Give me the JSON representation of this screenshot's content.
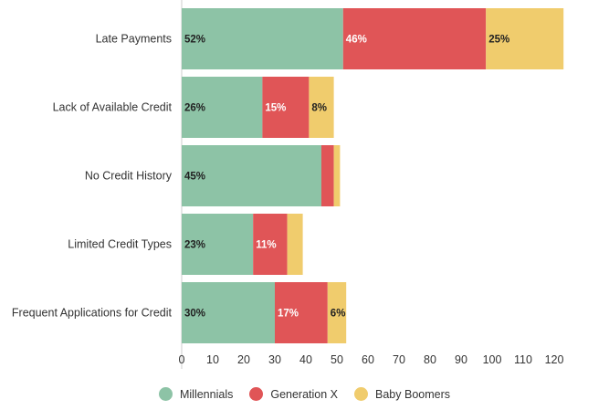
{
  "chart_data": {
    "type": "bar",
    "orientation": "horizontal",
    "stacked": true,
    "categories": [
      "Late Payments",
      "Lack of Available Credit",
      "No Credit History",
      "Limited Credit Types",
      "Frequent Applications for Credit"
    ],
    "series": [
      {
        "name": "Millennials",
        "color": "#8dc3a6",
        "values": [
          52,
          26,
          45,
          23,
          30
        ],
        "labels": [
          "52%",
          "26%",
          "45%",
          "23%",
          "30%"
        ],
        "label_color": "#222222"
      },
      {
        "name": "Generation X",
        "color": "#e05557",
        "values": [
          46,
          15,
          4,
          11,
          17
        ],
        "labels": [
          "46%",
          "15%",
          "",
          "11%",
          "17%"
        ],
        "label_color": "#ffffff"
      },
      {
        "name": "Baby Boomers",
        "color": "#f0cc6d",
        "values": [
          25,
          8,
          2,
          5,
          6
        ],
        "labels": [
          "25%",
          "8%",
          "",
          "",
          "6%"
        ],
        "label_color": "#222222"
      }
    ],
    "xlim": [
      0,
      125
    ],
    "xticks": [
      0,
      10,
      20,
      30,
      40,
      50,
      60,
      70,
      80,
      90,
      100,
      110,
      120
    ],
    "grid": false,
    "legend_position": "bottom"
  }
}
